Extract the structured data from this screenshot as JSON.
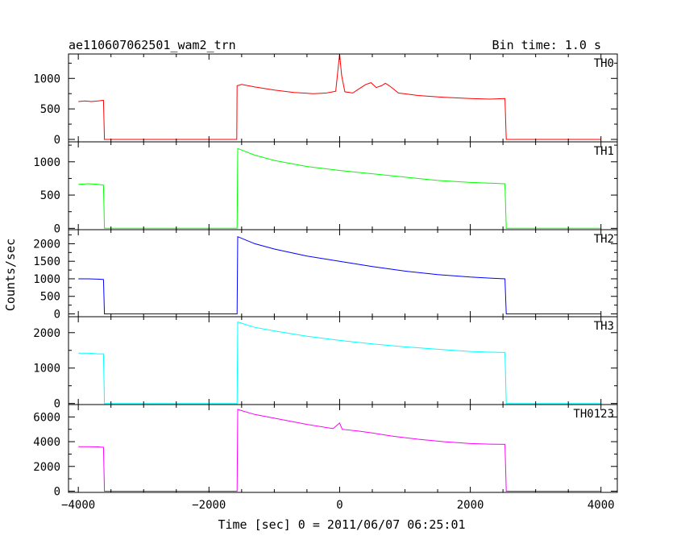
{
  "chart_data": {
    "type": "line",
    "title": "ae110607062501_wam2_trn",
    "bin_time_label": "Bin time: 1.0 s",
    "xlabel": "Time [sec] 0 = 2011/06/07 06:25:01",
    "ylabel": "Counts/sec",
    "xlim": [
      -4150,
      4250
    ],
    "x_ticks": [
      -4000,
      -2000,
      0,
      2000,
      4000
    ],
    "x_tick_labels": [
      "−4000",
      "−2000",
      "0",
      "2000",
      "4000"
    ],
    "grid": false,
    "panels": [
      {
        "name": "TH0",
        "color": "#ff0000",
        "ylim": [
          -40,
          1400
        ],
        "y_ticks": [
          0,
          500,
          1000
        ],
        "y_tick_labels": [
          "0",
          "500",
          "1000"
        ],
        "points": [
          [
            -4000,
            620
          ],
          [
            -3900,
            630
          ],
          [
            -3800,
            620
          ],
          [
            -3700,
            630
          ],
          [
            -3615,
            640
          ],
          [
            -3600,
            0
          ],
          [
            -1600,
            0
          ],
          [
            -1575,
            0
          ],
          [
            -1570,
            880
          ],
          [
            -1500,
            900
          ],
          [
            -1300,
            860
          ],
          [
            -1000,
            810
          ],
          [
            -700,
            770
          ],
          [
            -400,
            750
          ],
          [
            -200,
            760
          ],
          [
            -60,
            790
          ],
          [
            0,
            1400
          ],
          [
            30,
            1050
          ],
          [
            80,
            780
          ],
          [
            200,
            760
          ],
          [
            300,
            830
          ],
          [
            400,
            900
          ],
          [
            480,
            930
          ],
          [
            560,
            850
          ],
          [
            640,
            880
          ],
          [
            700,
            920
          ],
          [
            760,
            880
          ],
          [
            900,
            760
          ],
          [
            1200,
            720
          ],
          [
            1600,
            690
          ],
          [
            2000,
            670
          ],
          [
            2300,
            660
          ],
          [
            2530,
            670
          ],
          [
            2550,
            0
          ],
          [
            4000,
            0
          ]
        ]
      },
      {
        "name": "TH1",
        "color": "#00ff00",
        "ylim": [
          -20,
          1300
        ],
        "y_ticks": [
          0,
          500,
          1000
        ],
        "y_tick_labels": [
          "0",
          "500",
          "1000"
        ],
        "points": [
          [
            -4000,
            660
          ],
          [
            -3850,
            670
          ],
          [
            -3700,
            660
          ],
          [
            -3615,
            650
          ],
          [
            -3600,
            0
          ],
          [
            -1600,
            0
          ],
          [
            -1570,
            0
          ],
          [
            -1560,
            1200
          ],
          [
            -1300,
            1100
          ],
          [
            -1000,
            1020
          ],
          [
            -500,
            930
          ],
          [
            0,
            870
          ],
          [
            500,
            820
          ],
          [
            1000,
            770
          ],
          [
            1500,
            720
          ],
          [
            2000,
            690
          ],
          [
            2300,
            680
          ],
          [
            2530,
            670
          ],
          [
            2550,
            0
          ],
          [
            4000,
            0
          ]
        ]
      },
      {
        "name": "TH2",
        "color": "#0000ff",
        "ylim": [
          -80,
          2400
        ],
        "y_ticks": [
          0,
          500,
          1000,
          1500,
          2000
        ],
        "y_tick_labels": [
          "0",
          "500",
          "1000",
          "1500",
          "2000"
        ],
        "points": [
          [
            -4000,
            1000
          ],
          [
            -3850,
            1000
          ],
          [
            -3700,
            990
          ],
          [
            -3615,
            980
          ],
          [
            -3600,
            0
          ],
          [
            -1600,
            0
          ],
          [
            -1570,
            0
          ],
          [
            -1560,
            2200
          ],
          [
            -1300,
            2000
          ],
          [
            -1000,
            1850
          ],
          [
            -500,
            1650
          ],
          [
            0,
            1500
          ],
          [
            500,
            1350
          ],
          [
            1000,
            1220
          ],
          [
            1500,
            1120
          ],
          [
            2000,
            1050
          ],
          [
            2300,
            1020
          ],
          [
            2530,
            1000
          ],
          [
            2550,
            0
          ],
          [
            4000,
            0
          ]
        ]
      },
      {
        "name": "TH3",
        "color": "#00ffff",
        "ylim": [
          -30,
          2450
        ],
        "y_ticks": [
          0,
          1000,
          2000
        ],
        "y_tick_labels": [
          "0",
          "1000",
          "2000"
        ],
        "points": [
          [
            -4000,
            1420
          ],
          [
            -3850,
            1420
          ],
          [
            -3700,
            1400
          ],
          [
            -3615,
            1400
          ],
          [
            -3600,
            0
          ],
          [
            -1600,
            0
          ],
          [
            -1570,
            0
          ],
          [
            -1560,
            2300
          ],
          [
            -1300,
            2150
          ],
          [
            -1000,
            2050
          ],
          [
            -500,
            1900
          ],
          [
            0,
            1780
          ],
          [
            500,
            1680
          ],
          [
            1000,
            1600
          ],
          [
            1500,
            1530
          ],
          [
            2000,
            1470
          ],
          [
            2300,
            1450
          ],
          [
            2530,
            1440
          ],
          [
            2550,
            0
          ],
          [
            4000,
            0
          ]
        ]
      },
      {
        "name": "TH0123",
        "color": "#ff00ff",
        "ylim": [
          -100,
          7000
        ],
        "y_ticks": [
          0,
          2000,
          4000,
          6000
        ],
        "y_tick_labels": [
          "0",
          "2000",
          "4000",
          "6000"
        ],
        "points": [
          [
            -4000,
            3600
          ],
          [
            -3850,
            3600
          ],
          [
            -3700,
            3580
          ],
          [
            -3615,
            3550
          ],
          [
            -3600,
            0
          ],
          [
            -1600,
            0
          ],
          [
            -1570,
            0
          ],
          [
            -1560,
            6600
          ],
          [
            -1300,
            6200
          ],
          [
            -1000,
            5900
          ],
          [
            -500,
            5400
          ],
          [
            -100,
            5050
          ],
          [
            0,
            5500
          ],
          [
            40,
            5000
          ],
          [
            300,
            4850
          ],
          [
            500,
            4700
          ],
          [
            800,
            4450
          ],
          [
            1200,
            4200
          ],
          [
            1600,
            4000
          ],
          [
            2000,
            3850
          ],
          [
            2300,
            3800
          ],
          [
            2530,
            3780
          ],
          [
            2550,
            0
          ],
          [
            4000,
            0
          ]
        ]
      }
    ]
  }
}
